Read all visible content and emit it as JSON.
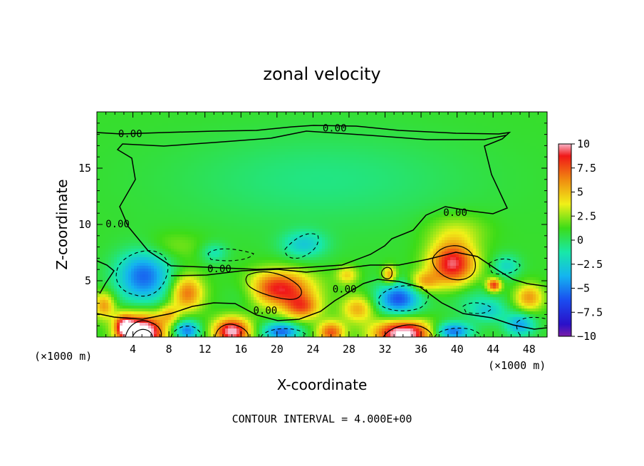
{
  "chart_data": {
    "type": "heatmap",
    "title": "zonal velocity",
    "xlabel": "X-coordinate",
    "ylabel": "Z-coordinate",
    "x_unit_left": "(×1000 m)",
    "x_unit_right": "(×1000 m)",
    "note": "CONTOUR INTERVAL = 4.000E+00",
    "xlim": [
      0,
      50
    ],
    "ylim": [
      0,
      20
    ],
    "x_ticks": [
      4,
      8,
      12,
      16,
      20,
      24,
      28,
      32,
      36,
      40,
      44,
      48
    ],
    "x_tick_labels": [
      "4",
      "8",
      "12",
      "16",
      "20",
      "24",
      "28",
      "32",
      "36",
      "40",
      "44",
      "48"
    ],
    "y_ticks": [
      5,
      10,
      15
    ],
    "y_tick_labels": [
      "5",
      "10",
      "15"
    ],
    "colorbar": {
      "range": [
        -10,
        10
      ],
      "ticks": [
        10,
        7.5,
        5,
        2.5,
        0,
        -2.5,
        -5,
        -7.5,
        -10
      ],
      "tick_labels": [
        "10",
        "7.5",
        "5",
        "2.5",
        "0",
        "−2.5",
        "−5",
        "−7.5",
        "−10"
      ],
      "colors": [
        {
          "value": -10,
          "color": "#7a1ea8"
        },
        {
          "value": -8.75,
          "color": "#2a10c8"
        },
        {
          "value": -6.25,
          "color": "#1a4cf0"
        },
        {
          "value": -3.75,
          "color": "#14b4f0"
        },
        {
          "value": -1.25,
          "color": "#18e8a8"
        },
        {
          "value": 1.25,
          "color": "#3cdc18"
        },
        {
          "value": 3.75,
          "color": "#f0f018"
        },
        {
          "value": 6.25,
          "color": "#f08c10"
        },
        {
          "value": 8.75,
          "color": "#f01818"
        },
        {
          "value": 10,
          "color": "#f8b4c8"
        }
      ]
    },
    "contour_labels": [
      {
        "text": "0.00",
        "x": 3.7,
        "z": 18.0
      },
      {
        "text": "0.00",
        "x": 26.4,
        "z": 18.5
      },
      {
        "text": "0.00",
        "x": 2.3,
        "z": 10.0
      },
      {
        "text": "0.00",
        "x": 39.8,
        "z": 11.0
      },
      {
        "text": "0.00",
        "x": 13.6,
        "z": 6.0
      },
      {
        "text": "0.00",
        "x": 27.5,
        "z": 4.2
      },
      {
        "text": "0.00",
        "x": 18.7,
        "z": 2.3
      }
    ],
    "features": [
      {
        "x": 25,
        "z": 14,
        "value": -1.5,
        "rx": 16,
        "rz": 4
      },
      {
        "x": 5.2,
        "z": 5.4,
        "value": -6.5,
        "rx": 3.0,
        "rz": 2.4
      },
      {
        "x": 10.0,
        "z": 3.9,
        "value": 6.0,
        "rx": 1.8,
        "rz": 1.6
      },
      {
        "x": 20.2,
        "z": 4.3,
        "value": 8.0,
        "rx": 3.8,
        "rz": 1.6
      },
      {
        "x": 22.8,
        "z": 2.6,
        "value": 5.5,
        "rx": 2.0,
        "rz": 1.1
      },
      {
        "x": 39.5,
        "z": 6.5,
        "value": 8.5,
        "rx": 2.6,
        "rz": 2.0
      },
      {
        "x": 33.5,
        "z": 3.4,
        "value": -7.0,
        "rx": 2.4,
        "rz": 1.4
      },
      {
        "x": 32.5,
        "z": 5.5,
        "value": 5.0,
        "rx": 0.8,
        "rz": 0.8
      },
      {
        "x": 44.1,
        "z": 4.6,
        "value": 7.5,
        "rx": 0.8,
        "rz": 0.6
      },
      {
        "x": 48.0,
        "z": 3.5,
        "value": 5.0,
        "rx": 1.6,
        "rz": 1.2
      },
      {
        "x": 0.8,
        "z": 2.8,
        "value": 5.0,
        "rx": 1.2,
        "rz": 1.2
      },
      {
        "x": 5.0,
        "z": 0.4,
        "value": 12.0,
        "rx": 2.4,
        "rz": 1.6
      },
      {
        "x": 15.0,
        "z": 0.5,
        "value": 9.5,
        "rx": 2.0,
        "rz": 1.2
      },
      {
        "x": 34.0,
        "z": 0.3,
        "value": 10.5,
        "rx": 3.2,
        "rz": 1.2
      },
      {
        "x": 26.0,
        "z": 0.4,
        "value": 6.5,
        "rx": 1.5,
        "rz": 1.0
      },
      {
        "x": 10.0,
        "z": 0.6,
        "value": -6.0,
        "rx": 1.4,
        "rz": 0.9
      },
      {
        "x": 20.5,
        "z": 0.5,
        "value": -6.5,
        "rx": 2.0,
        "rz": 0.8
      },
      {
        "x": 39.5,
        "z": 0.5,
        "value": -6.5,
        "rx": 2.0,
        "rz": 0.8
      },
      {
        "x": 47.0,
        "z": 1.1,
        "value": -5.0,
        "rx": 1.6,
        "rz": 1.0
      },
      {
        "x": 13.0,
        "z": 7.5,
        "value": -2.5,
        "rx": 1.5,
        "rz": 0.9
      },
      {
        "x": 23.0,
        "z": 8.2,
        "value": -3.5,
        "rx": 2.5,
        "rz": 1.2
      },
      {
        "x": 29.0,
        "z": 2.5,
        "value": 4.5,
        "rx": 1.8,
        "rz": 1.2
      },
      {
        "x": 43.5,
        "z": 2.3,
        "value": -3.0,
        "rx": 2.0,
        "rz": 1.0
      },
      {
        "x": 45.5,
        "z": 6.3,
        "value": -3.0,
        "rx": 1.5,
        "rz": 1.0
      },
      {
        "x": 3.0,
        "z": 1.0,
        "value": 6.5,
        "rx": 1.0,
        "rz": 1.0
      },
      {
        "x": 27.8,
        "z": 5.5,
        "value": 3.5,
        "rx": 1.2,
        "rz": 0.8
      },
      {
        "x": 36.3,
        "z": 4.9,
        "value": 4.2,
        "rx": 1.6,
        "rz": 0.9
      },
      {
        "x": 8.0,
        "z": 2.0,
        "value": 3.5,
        "rx": 1.2,
        "rz": 0.9
      },
      {
        "x": 16.5,
        "z": 4.0,
        "value": -2.0,
        "rx": 2.2,
        "rz": 1.5
      },
      {
        "x": 41.5,
        "z": 3.5,
        "value": -1.5,
        "rx": 3.0,
        "rz": 1.5
      },
      {
        "x": 8.0,
        "z": 8.0,
        "value": 1.5,
        "rx": 4.0,
        "rz": 1.4
      },
      {
        "x": 40.0,
        "z": 9.5,
        "value": 2.0,
        "rx": 3.5,
        "rz": 1.5
      }
    ]
  }
}
